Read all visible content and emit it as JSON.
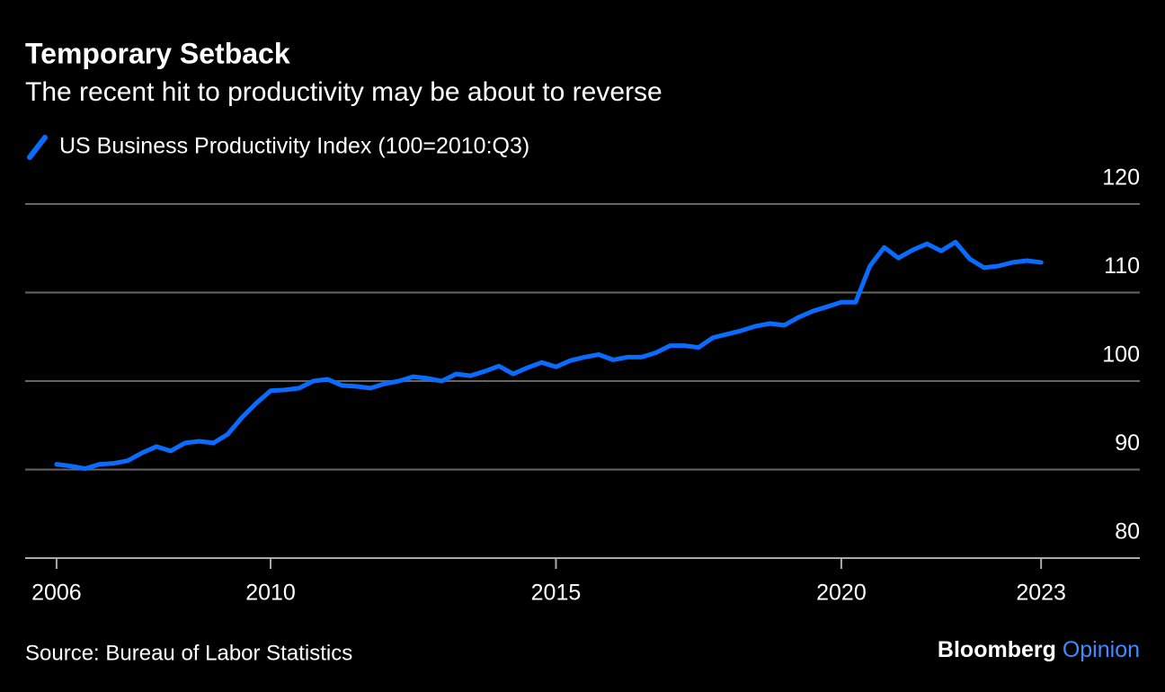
{
  "chart_data": {
    "type": "line",
    "title": "Temporary Setback",
    "subtitle": "The recent hit to productivity may be about to reverse",
    "source": "Source: Bureau of Labor Statistics",
    "brand": [
      "Bloomberg",
      "Opinion"
    ],
    "x": [
      2006.25,
      2006.5,
      2006.75,
      2007,
      2007.25,
      2007.5,
      2007.75,
      2008,
      2008.25,
      2008.5,
      2008.75,
      2009,
      2009.25,
      2009.5,
      2009.75,
      2010,
      2010.25,
      2010.5,
      2010.75,
      2011,
      2011.25,
      2011.5,
      2011.75,
      2012,
      2012.25,
      2012.5,
      2012.75,
      2013,
      2013.25,
      2013.5,
      2013.75,
      2014,
      2014.25,
      2014.5,
      2014.75,
      2015,
      2015.25,
      2015.5,
      2015.75,
      2016,
      2016.25,
      2016.5,
      2016.75,
      2017,
      2017.25,
      2017.5,
      2017.75,
      2018,
      2018.25,
      2018.5,
      2018.75,
      2019,
      2019.25,
      2019.5,
      2019.75,
      2020,
      2020.25,
      2020.5,
      2020.75,
      2021,
      2021.25,
      2021.5,
      2021.75,
      2022,
      2022.25,
      2022.5,
      2022.75,
      2023,
      2023.25,
      2023.5
    ],
    "series": [
      {
        "name": "US Business Productivity Index (100=2010:Q3)",
        "color": "#0a6cff",
        "values": [
          90.6,
          90.4,
          90.1,
          90.6,
          90.7,
          91.0,
          91.9,
          92.6,
          92.1,
          93.0,
          93.2,
          93.0,
          94.0,
          95.9,
          97.5,
          98.9,
          99.0,
          99.2,
          100.0,
          100.2,
          99.5,
          99.4,
          99.2,
          99.7,
          100.0,
          100.5,
          100.3,
          100.0,
          100.8,
          100.6,
          101.1,
          101.7,
          100.8,
          101.5,
          102.1,
          101.6,
          102.3,
          102.7,
          103.0,
          102.4,
          102.7,
          102.7,
          103.2,
          104.0,
          104.0,
          103.8,
          104.9,
          105.3,
          105.7,
          106.2,
          106.5,
          106.3,
          107.2,
          107.9,
          108.4,
          108.9,
          108.9,
          113.0,
          115.1,
          113.9,
          114.8,
          115.5,
          114.7,
          115.7,
          113.8,
          112.8,
          113.0,
          113.4,
          113.6,
          113.4
        ]
      }
    ],
    "xlim": [
      2005.7,
      2025.23
    ],
    "xticks": [
      {
        "value": 2006.25,
        "label": "2006"
      },
      2010,
      2015,
      2020,
      {
        "value": 2023.5,
        "label": "2023"
      }
    ],
    "ylim": [
      80,
      120
    ],
    "yticks": [
      80,
      90,
      100,
      110,
      120
    ],
    "grid": true
  }
}
